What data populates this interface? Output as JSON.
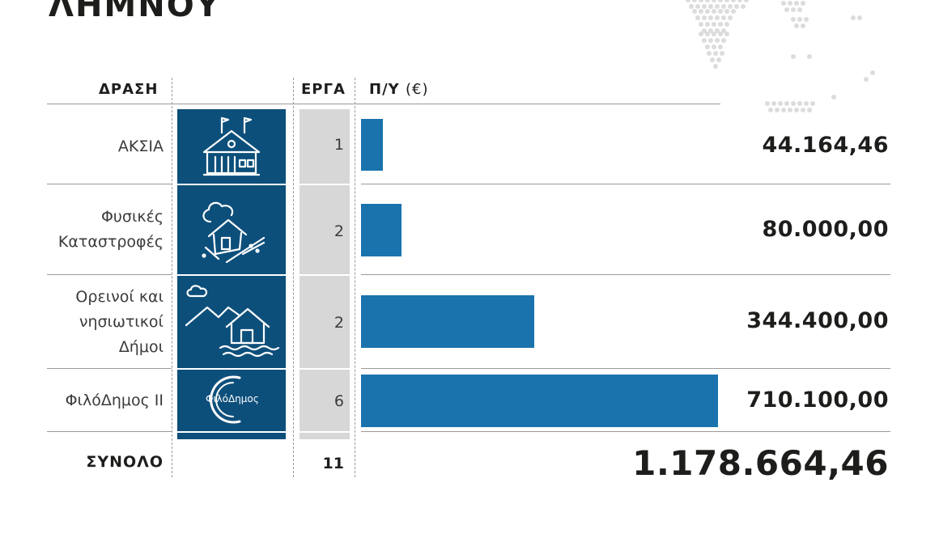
{
  "title": "ΛΗΜΝΟΥ",
  "headers": {
    "action": "ΔΡΑΣΗ",
    "projects": "ΕΡΓΑ",
    "budget": "Π/Υ",
    "budget_unit": "(€)"
  },
  "rows": [
    {
      "label_lines": [
        "ΑΚΣΙΑ"
      ],
      "icon": "town-hall-icon",
      "projects": "1",
      "value_text": "44.164,46"
    },
    {
      "label_lines": [
        "Φυσικές",
        "Καταστροφές"
      ],
      "icon": "landslide-house-icon",
      "projects": "2",
      "value_text": "80.000,00"
    },
    {
      "label_lines": [
        "Ορεινοί και",
        "νησιωτικοί",
        "Δήμοι"
      ],
      "icon": "mountain-island-house-icon",
      "projects": "2",
      "value_text": "344.400,00"
    },
    {
      "label_lines": [
        "ΦιλόΔημος ΙΙ"
      ],
      "icon": "filodimos-logo",
      "projects": "6",
      "value_text": "710.100,00"
    }
  ],
  "logo_text": "ΦιλόΔημος",
  "total": {
    "label": "ΣΥΝΟΛΟ",
    "projects": "11",
    "value_text": "1.178.664,46"
  },
  "colors": {
    "bar": "#1a73ad",
    "icon_bg": "#0d4f7b",
    "count_bg": "#d7d7d7"
  },
  "chart_data": {
    "type": "bar",
    "orientation": "horizontal",
    "categories": [
      "ΑΚΣΙΑ",
      "Φυσικές Καταστροφές",
      "Ορεινοί και νησιωτικοί Δήμοι",
      "ΦιλόΔημος ΙΙ"
    ],
    "values": [
      44164.46,
      80000.0,
      344400.0,
      710100.0
    ],
    "projects": [
      1,
      2,
      2,
      6
    ],
    "xlim": [
      0,
      710100.0
    ],
    "grid": false,
    "legend": "none"
  }
}
